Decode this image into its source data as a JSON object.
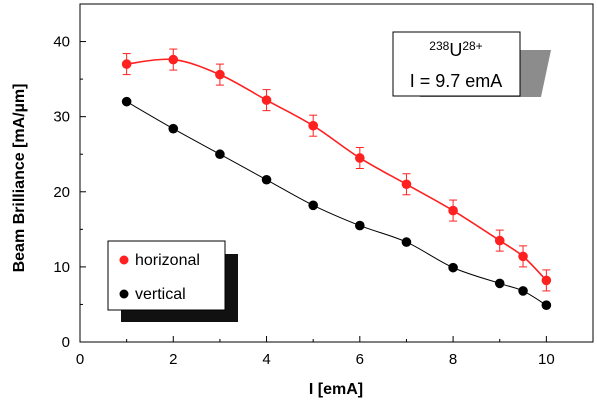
{
  "chart_data": {
    "type": "scatter",
    "xlabel": "I [emA]",
    "ylabel": "Beam Brilliance  [mA/µm]",
    "xlim": [
      0,
      11
    ],
    "ylim": [
      0,
      45
    ],
    "xticks": [
      "0",
      "2",
      "4",
      "6",
      "8",
      "10"
    ],
    "yticks": [
      "0",
      "10",
      "20",
      "30",
      "40"
    ],
    "grid": false,
    "legend_position": "bottom-left",
    "annotation": {
      "mass": "238",
      "element": "U",
      "charge": "28+",
      "current": "I = 9.7 emA"
    },
    "series": [
      {
        "name": "horizonal",
        "color": "#ff2020",
        "x": [
          1,
          2,
          3,
          4,
          5,
          6,
          7,
          8,
          9,
          9.5,
          10
        ],
        "y": [
          37.0,
          37.6,
          35.6,
          32.2,
          28.8,
          24.5,
          21.0,
          17.5,
          13.5,
          11.4,
          8.2
        ],
        "error": [
          1.4,
          1.4,
          1.4,
          1.4,
          1.4,
          1.4,
          1.4,
          1.4,
          1.4,
          1.4,
          1.4
        ],
        "fit": true
      },
      {
        "name": "vertical",
        "color": "#000000",
        "x": [
          1,
          2,
          3,
          4,
          5,
          6,
          7,
          8,
          9,
          9.5,
          10
        ],
        "y": [
          32.0,
          28.4,
          25.0,
          21.6,
          18.2,
          15.5,
          13.3,
          9.9,
          7.8,
          6.8,
          4.9
        ],
        "fit": true
      }
    ]
  }
}
